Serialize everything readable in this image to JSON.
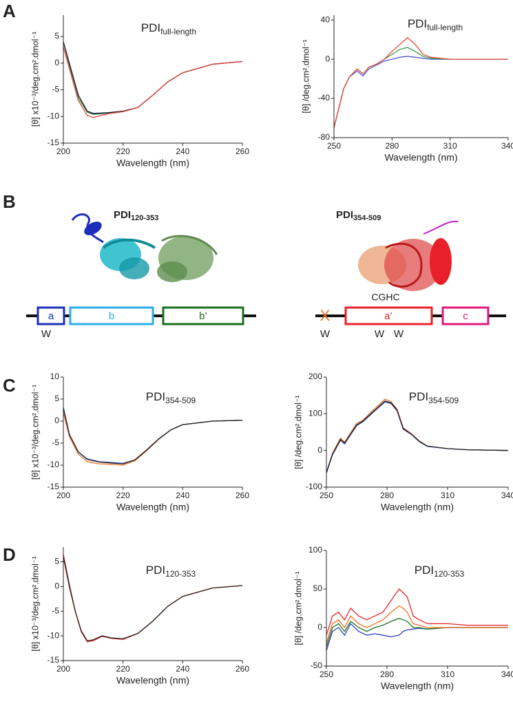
{
  "panels": [
    "A",
    "B",
    "C",
    "D"
  ],
  "diagram": {
    "left": {
      "title": "PDI",
      "title_sub": "120-353",
      "domains": [
        "a",
        "b",
        "b’"
      ],
      "marks": [
        "W"
      ]
    },
    "right": {
      "title": "PDI",
      "title_sub": "354-509",
      "x": "X",
      "domains": [
        "a’",
        "c"
      ],
      "motif": "CGHC",
      "marks": [
        "W",
        "W",
        "W"
      ]
    }
  },
  "chart_data": [
    {
      "type": "line",
      "title": "PDI",
      "title_sub": "full-length",
      "xlabel": "Wavelength (nm)",
      "ylabel": "[θ] x10⁻³/deg.cm².dmol⁻¹",
      "xlim": [
        200,
        260
      ],
      "xticks": [
        200,
        220,
        240,
        260
      ],
      "ylim": [
        -15,
        9
      ],
      "yticks": [
        -15,
        -10,
        -5,
        0,
        5
      ],
      "x": [
        200,
        202,
        205,
        208,
        210,
        215,
        220,
        225,
        230,
        235,
        240,
        250,
        260
      ],
      "series": [
        {
          "color": "#3a9a4a",
          "values": [
            4,
            -0.5,
            -6.5,
            -9.2,
            -9.6,
            -9.4,
            -9.1,
            -8.3,
            -6,
            -3.5,
            -1.8,
            -0.2,
            0.3
          ]
        },
        {
          "color": "#4a5bd0",
          "values": [
            4,
            0,
            -6,
            -9,
            -9.4,
            -9.3,
            -9,
            -8.3,
            -6,
            -3.5,
            -1.8,
            -0.2,
            0.3
          ]
        },
        {
          "color": "#222222",
          "values": [
            4,
            0,
            -6,
            -9,
            -9.5,
            -9.3,
            -9,
            -8.3,
            -6,
            -3.5,
            -1.8,
            -0.2,
            0.3
          ]
        },
        {
          "color": "#e8453c",
          "values": [
            3,
            -1,
            -7,
            -9.8,
            -10.2,
            -9.5,
            -9.1,
            -8.3,
            -6,
            -3.5,
            -1.8,
            -0.2,
            0.3
          ]
        }
      ]
    },
    {
      "type": "line",
      "title": "PDI",
      "title_sub": "full-length",
      "xlabel": "Wavelength (nm)",
      "ylabel": "[θ] /deg.cm².dmol⁻¹",
      "xlim": [
        250,
        340
      ],
      "xticks": [
        250,
        280,
        310,
        340
      ],
      "ylim": [
        -80,
        45
      ],
      "yticks": [
        -80,
        -40,
        0,
        40
      ],
      "x": [
        250,
        255,
        258,
        262,
        265,
        268,
        272,
        276,
        280,
        284,
        288,
        292,
        296,
        300,
        310,
        320,
        340
      ],
      "series": [
        {
          "color": "#4a5bd0",
          "values": [
            -70,
            -30,
            -18,
            -12,
            -17,
            -10,
            -6,
            -2,
            0,
            2,
            3,
            2,
            1,
            0,
            0,
            0,
            0
          ]
        },
        {
          "color": "#3a9a4a",
          "values": [
            -70,
            -30,
            -18,
            -10,
            -15,
            -8,
            -5,
            0,
            5,
            10,
            12,
            8,
            3,
            1,
            0,
            0,
            0
          ]
        },
        {
          "color": "#e8453c",
          "values": [
            -70,
            -30,
            -18,
            -10,
            -15,
            -8,
            -5,
            0,
            8,
            15,
            22,
            15,
            5,
            2,
            0,
            0,
            0
          ]
        }
      ]
    },
    {
      "type": "line",
      "title": "PDI",
      "title_sub": "354-509",
      "xlabel": "Wavelength (nm)",
      "ylabel": "[θ] x10⁻³/deg.cm².dmol⁻¹",
      "xlim": [
        200,
        260
      ],
      "xticks": [
        200,
        220,
        240,
        260
      ],
      "ylim": [
        -15,
        10
      ],
      "yticks": [
        -15,
        -10,
        -5,
        0,
        5,
        10
      ],
      "x": [
        200,
        202,
        205,
        208,
        212,
        216,
        220,
        224,
        228,
        232,
        236,
        240,
        250,
        260
      ],
      "series": [
        {
          "color": "#f07020",
          "values": [
            2,
            -3.5,
            -7.5,
            -9.2,
            -9.7,
            -9.8,
            -10,
            -9,
            -6.7,
            -4.1,
            -2,
            -0.8,
            0,
            0.2
          ]
        },
        {
          "color": "#2a3fc0",
          "values": [
            3,
            -3,
            -7,
            -8.6,
            -9.2,
            -9.4,
            -9.6,
            -8.8,
            -6.5,
            -4,
            -2,
            -0.8,
            0,
            0.2
          ]
        },
        {
          "color": "#222222",
          "values": [
            3,
            -3,
            -7,
            -8.7,
            -9.3,
            -9.5,
            -9.7,
            -8.8,
            -6.5,
            -4,
            -2,
            -0.8,
            0,
            0.2
          ]
        }
      ]
    },
    {
      "type": "line",
      "title": "PDI",
      "title_sub": "354-509",
      "xlabel": "Wavelength (nm)",
      "ylabel": "[θ] /deg.cm².dmol⁻¹",
      "xlim": [
        250,
        340
      ],
      "xticks": [
        250,
        280,
        310,
        340
      ],
      "ylim": [
        -100,
        200
      ],
      "yticks": [
        -100,
        0,
        100,
        200
      ],
      "x": [
        250,
        253,
        257,
        259,
        262,
        265,
        268,
        272,
        276,
        279,
        282,
        285,
        288,
        292,
        296,
        300,
        310,
        320,
        340
      ],
      "series": [
        {
          "color": "#f07020",
          "values": [
            -60,
            -8,
            34,
            22,
            48,
            74,
            82,
            104,
            124,
            140,
            133,
            112,
            62,
            46,
            26,
            12,
            5,
            2,
            0
          ]
        },
        {
          "color": "#2a3fc0",
          "values": [
            -62,
            -12,
            28,
            18,
            43,
            68,
            78,
            98,
            118,
            132,
            128,
            108,
            58,
            44,
            24,
            11,
            5,
            2,
            0
          ]
        },
        {
          "color": "#222222",
          "values": [
            -60,
            -10,
            30,
            20,
            45,
            70,
            80,
            100,
            120,
            135,
            130,
            110,
            60,
            45,
            25,
            12,
            5,
            2,
            0
          ]
        }
      ]
    },
    {
      "type": "line",
      "title": "PDI",
      "title_sub": "120-353",
      "xlabel": "Wavelength (nm)",
      "ylabel": "[θ] x10⁻³/deg.cm².dmol⁻¹",
      "xlim": [
        200,
        260
      ],
      "xticks": [
        200,
        220,
        240,
        260
      ],
      "ylim": [
        -15,
        8
      ],
      "yticks": [
        -15,
        -10,
        -5,
        0,
        5
      ],
      "x": [
        200,
        202,
        204,
        206,
        208,
        210,
        213,
        216,
        220,
        225,
        230,
        235,
        240,
        250,
        260
      ],
      "series": [
        {
          "color": "#e8202a",
          "values": [
            6.5,
            0.5,
            -5,
            -9.2,
            -11.2,
            -11,
            -10.1,
            -10.5,
            -10.7,
            -9.5,
            -7,
            -4,
            -2,
            -0.3,
            0.2
          ]
        },
        {
          "color": "#f07020",
          "values": [
            6,
            0,
            -5,
            -9,
            -11,
            -10.8,
            -10,
            -10.4,
            -10.6,
            -9.5,
            -7,
            -4,
            -2,
            -0.3,
            0.2
          ]
        },
        {
          "color": "#222222",
          "values": [
            6,
            0,
            -5,
            -9,
            -11,
            -10.8,
            -10,
            -10.4,
            -10.6,
            -9.5,
            -7,
            -4,
            -2,
            -0.3,
            0.2
          ]
        }
      ]
    },
    {
      "type": "line",
      "title": "PDI",
      "title_sub": "120-353",
      "xlabel": "Wavelength (nm)",
      "ylabel": "[θ] /deg.cm².dmol⁻¹",
      "xlim": [
        250,
        340
      ],
      "xticks": [
        250,
        280,
        310,
        340
      ],
      "ylim": [
        -50,
        100
      ],
      "yticks": [
        -50,
        0,
        50,
        100
      ],
      "x": [
        250,
        253,
        256,
        259,
        262,
        266,
        270,
        274,
        278,
        282,
        286,
        288,
        290,
        293,
        296,
        300,
        310,
        320,
        340
      ],
      "series": [
        {
          "color": "#2a3fc0",
          "values": [
            -30,
            -5,
            0,
            -10,
            5,
            -5,
            -10,
            -8,
            -10,
            -12,
            -10,
            -5,
            -3,
            -2,
            -1,
            -2,
            0,
            0,
            0
          ]
        },
        {
          "color": "#1f6e1f",
          "values": [
            -25,
            0,
            5,
            -5,
            8,
            0,
            -5,
            0,
            3,
            8,
            12,
            10,
            8,
            0,
            0,
            -2,
            0,
            0,
            0
          ]
        },
        {
          "color": "#f07020",
          "values": [
            -20,
            5,
            10,
            0,
            15,
            5,
            0,
            5,
            10,
            20,
            28,
            25,
            20,
            5,
            3,
            0,
            0,
            0,
            0
          ]
        },
        {
          "color": "#e8202a",
          "values": [
            -10,
            15,
            20,
            10,
            25,
            15,
            10,
            15,
            20,
            35,
            50,
            45,
            40,
            15,
            10,
            5,
            5,
            3,
            3
          ]
        }
      ]
    }
  ]
}
